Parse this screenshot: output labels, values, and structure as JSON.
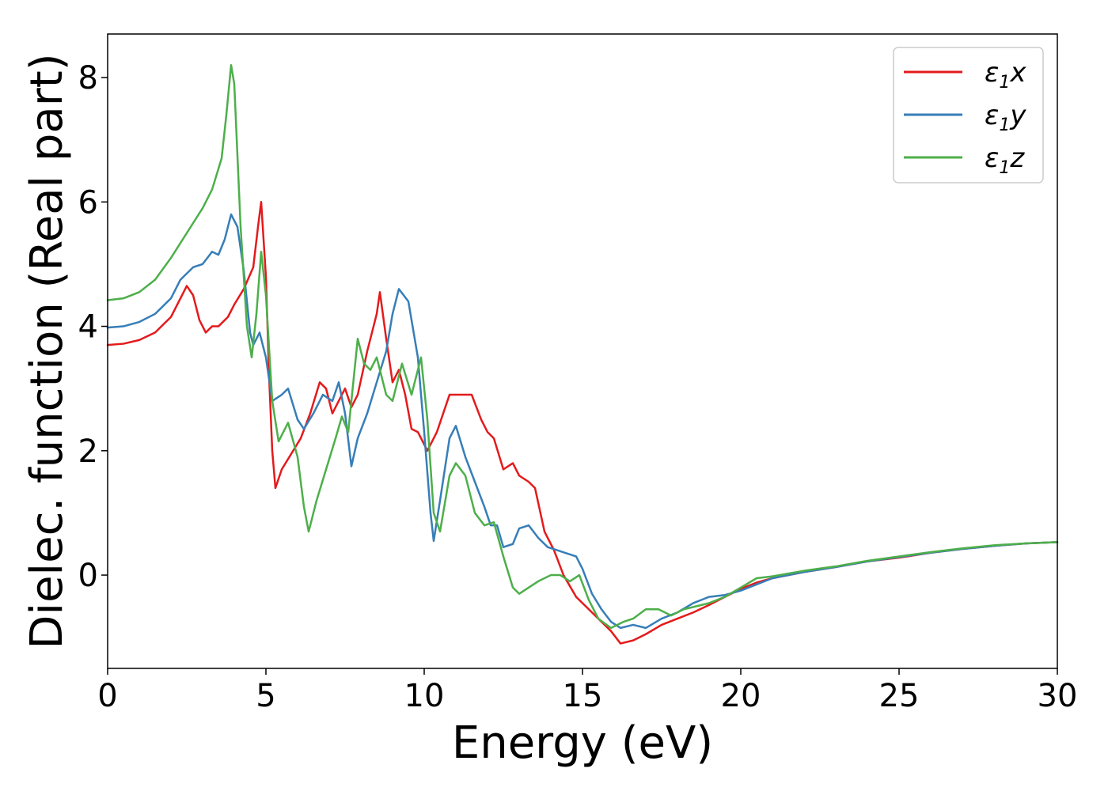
{
  "chart_data": {
    "type": "line",
    "title": "",
    "xlabel": "Energy (eV)",
    "ylabel": "Dielec. function (Real part)",
    "xlim": [
      0,
      30
    ],
    "ylim": [
      -1.5,
      8.7
    ],
    "x_ticks": [
      0,
      5,
      10,
      15,
      20,
      25,
      30
    ],
    "x_tick_labels": [
      "0",
      "5",
      "10",
      "15",
      "20",
      "25",
      "30"
    ],
    "y_ticks": [
      0,
      2,
      4,
      6,
      8
    ],
    "y_tick_labels": [
      "0",
      "2",
      "4",
      "6",
      "8"
    ],
    "grid": false,
    "legend_position": "top-right",
    "series": [
      {
        "name": "ε₁x",
        "legend_base": "ε",
        "legend_sub": "1",
        "legend_suffix": "x",
        "color": "#e41a1c",
        "points": [
          [
            0,
            3.7
          ],
          [
            0.5,
            3.72
          ],
          [
            1,
            3.78
          ],
          [
            1.5,
            3.9
          ],
          [
            2,
            4.15
          ],
          [
            2.3,
            4.45
          ],
          [
            2.5,
            4.65
          ],
          [
            2.7,
            4.5
          ],
          [
            2.9,
            4.1
          ],
          [
            3.1,
            3.9
          ],
          [
            3.3,
            4.0
          ],
          [
            3.5,
            4.0
          ],
          [
            3.8,
            4.15
          ],
          [
            4.0,
            4.35
          ],
          [
            4.3,
            4.6
          ],
          [
            4.6,
            4.95
          ],
          [
            4.75,
            5.6
          ],
          [
            4.85,
            6.0
          ],
          [
            5.0,
            4.8
          ],
          [
            5.1,
            3.2
          ],
          [
            5.2,
            2.0
          ],
          [
            5.3,
            1.4
          ],
          [
            5.5,
            1.7
          ],
          [
            5.8,
            1.95
          ],
          [
            6.1,
            2.2
          ],
          [
            6.4,
            2.6
          ],
          [
            6.7,
            3.1
          ],
          [
            6.9,
            3.0
          ],
          [
            7.1,
            2.6
          ],
          [
            7.3,
            2.8
          ],
          [
            7.5,
            3.0
          ],
          [
            7.7,
            2.7
          ],
          [
            7.9,
            2.9
          ],
          [
            8.2,
            3.6
          ],
          [
            8.5,
            4.2
          ],
          [
            8.6,
            4.55
          ],
          [
            8.8,
            3.8
          ],
          [
            9.0,
            3.1
          ],
          [
            9.2,
            3.3
          ],
          [
            9.4,
            2.9
          ],
          [
            9.6,
            2.35
          ],
          [
            9.8,
            2.3
          ],
          [
            10.1,
            2.0
          ],
          [
            10.4,
            2.3
          ],
          [
            10.8,
            2.9
          ],
          [
            11.2,
            2.9
          ],
          [
            11.5,
            2.9
          ],
          [
            11.8,
            2.5
          ],
          [
            12.0,
            2.3
          ],
          [
            12.2,
            2.2
          ],
          [
            12.5,
            1.7
          ],
          [
            12.8,
            1.8
          ],
          [
            13.0,
            1.6
          ],
          [
            13.3,
            1.5
          ],
          [
            13.5,
            1.4
          ],
          [
            13.8,
            0.7
          ],
          [
            14.1,
            0.4
          ],
          [
            14.4,
            0.0
          ],
          [
            14.8,
            -0.35
          ],
          [
            15.1,
            -0.5
          ],
          [
            15.5,
            -0.7
          ],
          [
            15.9,
            -0.9
          ],
          [
            16.2,
            -1.1
          ],
          [
            16.6,
            -1.05
          ],
          [
            17.0,
            -0.95
          ],
          [
            17.5,
            -0.8
          ],
          [
            18.0,
            -0.7
          ],
          [
            18.5,
            -0.6
          ],
          [
            19.0,
            -0.48
          ],
          [
            19.5,
            -0.35
          ],
          [
            20.0,
            -0.22
          ],
          [
            20.5,
            -0.12
          ],
          [
            21.0,
            -0.05
          ],
          [
            22.0,
            0.05
          ],
          [
            23.0,
            0.13
          ],
          [
            24.0,
            0.22
          ],
          [
            25.0,
            0.28
          ],
          [
            26.0,
            0.36
          ],
          [
            27.0,
            0.42
          ],
          [
            28.0,
            0.47
          ],
          [
            29.0,
            0.51
          ],
          [
            30.0,
            0.53
          ]
        ]
      },
      {
        "name": "ε₁y",
        "legend_base": "ε",
        "legend_sub": "1",
        "legend_suffix": "y",
        "color": "#377eb8",
        "points": [
          [
            0,
            3.98
          ],
          [
            0.5,
            4.0
          ],
          [
            1,
            4.07
          ],
          [
            1.5,
            4.2
          ],
          [
            2,
            4.45
          ],
          [
            2.3,
            4.75
          ],
          [
            2.7,
            4.95
          ],
          [
            3.0,
            5.0
          ],
          [
            3.3,
            5.2
          ],
          [
            3.5,
            5.15
          ],
          [
            3.7,
            5.4
          ],
          [
            3.9,
            5.8
          ],
          [
            4.1,
            5.6
          ],
          [
            4.3,
            4.9
          ],
          [
            4.5,
            3.9
          ],
          [
            4.6,
            3.7
          ],
          [
            4.8,
            3.9
          ],
          [
            5.0,
            3.5
          ],
          [
            5.2,
            2.8
          ],
          [
            5.5,
            2.9
          ],
          [
            5.7,
            3.0
          ],
          [
            6.0,
            2.5
          ],
          [
            6.2,
            2.35
          ],
          [
            6.5,
            2.6
          ],
          [
            6.8,
            2.9
          ],
          [
            7.1,
            2.8
          ],
          [
            7.3,
            3.1
          ],
          [
            7.5,
            2.6
          ],
          [
            7.7,
            1.75
          ],
          [
            7.9,
            2.2
          ],
          [
            8.2,
            2.6
          ],
          [
            8.5,
            3.1
          ],
          [
            8.8,
            3.6
          ],
          [
            9.0,
            4.2
          ],
          [
            9.2,
            4.6
          ],
          [
            9.5,
            4.4
          ],
          [
            9.8,
            3.5
          ],
          [
            10.0,
            2.3
          ],
          [
            10.2,
            1.0
          ],
          [
            10.3,
            0.55
          ],
          [
            10.5,
            1.2
          ],
          [
            10.8,
            2.2
          ],
          [
            11.0,
            2.4
          ],
          [
            11.3,
            1.9
          ],
          [
            11.6,
            1.5
          ],
          [
            11.9,
            1.1
          ],
          [
            12.1,
            0.8
          ],
          [
            12.3,
            0.8
          ],
          [
            12.5,
            0.45
          ],
          [
            12.8,
            0.5
          ],
          [
            13.0,
            0.75
          ],
          [
            13.3,
            0.8
          ],
          [
            13.6,
            0.6
          ],
          [
            13.9,
            0.45
          ],
          [
            14.2,
            0.4
          ],
          [
            14.5,
            0.35
          ],
          [
            14.8,
            0.3
          ],
          [
            15.0,
            0.1
          ],
          [
            15.3,
            -0.3
          ],
          [
            15.6,
            -0.55
          ],
          [
            15.9,
            -0.75
          ],
          [
            16.2,
            -0.85
          ],
          [
            16.6,
            -0.8
          ],
          [
            17.0,
            -0.85
          ],
          [
            17.5,
            -0.7
          ],
          [
            18.0,
            -0.6
          ],
          [
            18.5,
            -0.45
          ],
          [
            19.0,
            -0.35
          ],
          [
            19.5,
            -0.32
          ],
          [
            20.0,
            -0.25
          ],
          [
            20.5,
            -0.15
          ],
          [
            21.0,
            -0.05
          ],
          [
            22.0,
            0.05
          ],
          [
            23.0,
            0.13
          ],
          [
            24.0,
            0.22
          ],
          [
            25.0,
            0.29
          ],
          [
            26.0,
            0.36
          ],
          [
            27.0,
            0.42
          ],
          [
            28.0,
            0.47
          ],
          [
            29.0,
            0.51
          ],
          [
            30.0,
            0.53
          ]
        ]
      },
      {
        "name": "ε₁z",
        "legend_base": "ε",
        "legend_sub": "1",
        "legend_suffix": "z",
        "color": "#4daf4a",
        "points": [
          [
            0,
            4.42
          ],
          [
            0.5,
            4.45
          ],
          [
            1,
            4.55
          ],
          [
            1.5,
            4.75
          ],
          [
            2,
            5.1
          ],
          [
            2.5,
            5.5
          ],
          [
            3.0,
            5.9
          ],
          [
            3.3,
            6.2
          ],
          [
            3.6,
            6.7
          ],
          [
            3.75,
            7.4
          ],
          [
            3.9,
            8.2
          ],
          [
            4.0,
            7.9
          ],
          [
            4.2,
            5.6
          ],
          [
            4.4,
            4.0
          ],
          [
            4.55,
            3.5
          ],
          [
            4.7,
            4.2
          ],
          [
            4.85,
            5.2
          ],
          [
            5.0,
            4.5
          ],
          [
            5.2,
            2.8
          ],
          [
            5.4,
            2.15
          ],
          [
            5.7,
            2.45
          ],
          [
            6.0,
            1.9
          ],
          [
            6.2,
            1.1
          ],
          [
            6.35,
            0.7
          ],
          [
            6.6,
            1.2
          ],
          [
            6.9,
            1.7
          ],
          [
            7.2,
            2.2
          ],
          [
            7.4,
            2.55
          ],
          [
            7.6,
            2.3
          ],
          [
            7.9,
            3.8
          ],
          [
            8.1,
            3.4
          ],
          [
            8.3,
            3.3
          ],
          [
            8.5,
            3.5
          ],
          [
            8.8,
            2.9
          ],
          [
            9.0,
            2.8
          ],
          [
            9.3,
            3.4
          ],
          [
            9.6,
            2.9
          ],
          [
            9.9,
            3.5
          ],
          [
            10.1,
            2.5
          ],
          [
            10.3,
            1.0
          ],
          [
            10.5,
            0.7
          ],
          [
            10.8,
            1.6
          ],
          [
            11.0,
            1.8
          ],
          [
            11.3,
            1.6
          ],
          [
            11.6,
            1.0
          ],
          [
            11.9,
            0.8
          ],
          [
            12.2,
            0.85
          ],
          [
            12.5,
            0.3
          ],
          [
            12.8,
            -0.2
          ],
          [
            13.0,
            -0.3
          ],
          [
            13.3,
            -0.2
          ],
          [
            13.6,
            -0.1
          ],
          [
            14.0,
            0.0
          ],
          [
            14.3,
            0.0
          ],
          [
            14.6,
            -0.1
          ],
          [
            14.9,
            0.0
          ],
          [
            15.2,
            -0.4
          ],
          [
            15.5,
            -0.7
          ],
          [
            15.9,
            -0.85
          ],
          [
            16.3,
            -0.75
          ],
          [
            16.6,
            -0.7
          ],
          [
            17.0,
            -0.55
          ],
          [
            17.4,
            -0.55
          ],
          [
            17.8,
            -0.65
          ],
          [
            18.2,
            -0.55
          ],
          [
            18.6,
            -0.5
          ],
          [
            19.0,
            -0.45
          ],
          [
            19.5,
            -0.35
          ],
          [
            20.0,
            -0.2
          ],
          [
            20.5,
            -0.05
          ],
          [
            21.0,
            -0.02
          ],
          [
            22.0,
            0.07
          ],
          [
            23.0,
            0.14
          ],
          [
            24.0,
            0.23
          ],
          [
            25.0,
            0.3
          ],
          [
            26.0,
            0.37
          ],
          [
            27.0,
            0.43
          ],
          [
            28.0,
            0.48
          ],
          [
            29.0,
            0.51
          ],
          [
            30.0,
            0.53
          ]
        ]
      }
    ]
  }
}
